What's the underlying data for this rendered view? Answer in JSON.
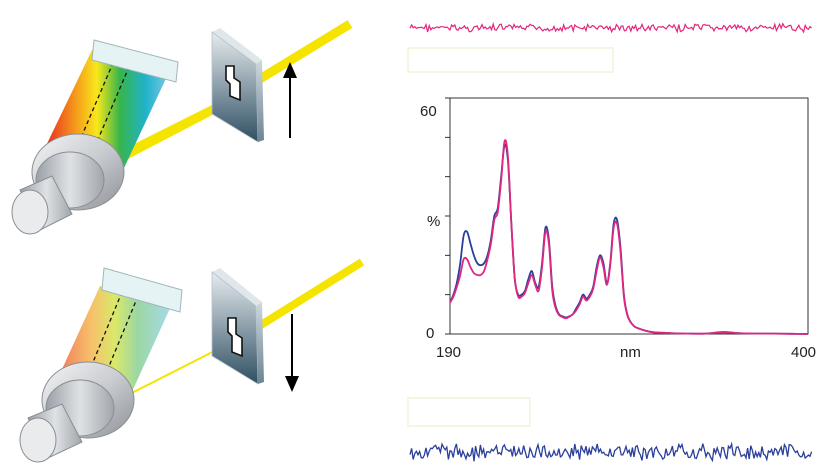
{
  "chart_data": {
    "type": "line",
    "title": "",
    "xlabel": "nm",
    "ylabel": "%",
    "xlim": [
      190,
      400
    ],
    "ylim": [
      0,
      60
    ],
    "x_tick_labels": [
      "190",
      "400"
    ],
    "y_tick_labels": [
      "60",
      "0"
    ],
    "grid": false,
    "legend": "none",
    "x": [
      190,
      192,
      194,
      196,
      198,
      200,
      202,
      204,
      206,
      208,
      210,
      212,
      214,
      216,
      218,
      220,
      222,
      224,
      226,
      228,
      230,
      232,
      234,
      236,
      238,
      240,
      242,
      244,
      246,
      248,
      250,
      252,
      254,
      256,
      258,
      260,
      262,
      264,
      266,
      268,
      270,
      272,
      274,
      276,
      278,
      280,
      282,
      284,
      286,
      288,
      290,
      292,
      294,
      296,
      298,
      300,
      305,
      310,
      315,
      320,
      330,
      340,
      350,
      360,
      370,
      380,
      390,
      400
    ],
    "series": [
      {
        "color": "#2a3f9a",
        "values": [
          8,
          10,
          13,
          18,
          25,
          26,
          23,
          20,
          18,
          17.5,
          18,
          20,
          24,
          30,
          32,
          40,
          48,
          44,
          28,
          14,
          10,
          10,
          11,
          14,
          16,
          13,
          12,
          18,
          27,
          24,
          12,
          7,
          5,
          4.5,
          4.2,
          4.5,
          5,
          6.5,
          8,
          10,
          9,
          10,
          12,
          17,
          20,
          18,
          13,
          18,
          28,
          29,
          22,
          10,
          5,
          3,
          2,
          1.5,
          0.8,
          0.4,
          0.3,
          0.2,
          0.1,
          0.1,
          0.5,
          0.2,
          0.1,
          0.1,
          0.05,
          0
        ]
      },
      {
        "color": "#e0267e",
        "values": [
          8,
          9.5,
          12,
          15,
          19,
          19,
          17,
          15.5,
          15,
          15,
          16,
          19,
          23,
          29,
          31,
          39,
          49,
          45,
          28,
          14,
          9.5,
          9.5,
          10.5,
          13,
          15,
          12.5,
          11,
          17,
          26,
          23,
          11,
          6.5,
          4.8,
          4.3,
          4,
          4.4,
          5,
          6,
          7.5,
          9.5,
          8.5,
          9.5,
          11.5,
          16,
          19.5,
          17,
          12.5,
          17.5,
          27,
          28,
          21,
          9.5,
          4.8,
          3,
          2,
          1.5,
          0.8,
          0.4,
          0.3,
          0.2,
          0.1,
          0.1,
          0.4,
          0.2,
          0.1,
          0.1,
          0.05,
          0
        ]
      }
    ]
  },
  "noise_traces": [
    {
      "color": "#e0267e",
      "amplitude": 6
    },
    {
      "color": "#2a3f9a",
      "amplitude": 13
    }
  ],
  "apparatus": {
    "beam_color": "#f5e400",
    "slit_arrows": [
      "up",
      "down"
    ]
  }
}
